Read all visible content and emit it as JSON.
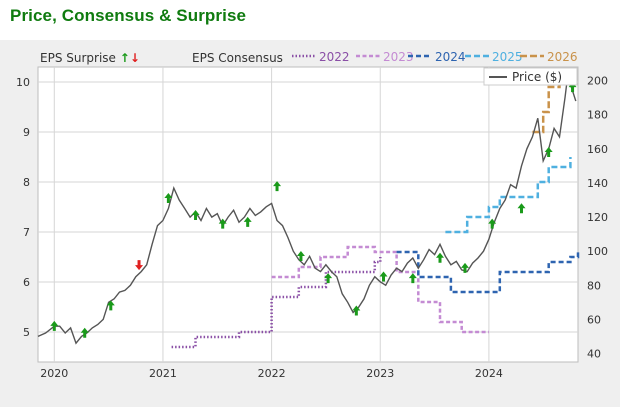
{
  "title": "Price, Consensus & Surprise",
  "legend": {
    "surprise_label": "EPS Surprise",
    "consensus_label": "EPS Consensus",
    "years": [
      {
        "label": "2022",
        "color": "#8a4fa6"
      },
      {
        "label": "2023",
        "color": "#c48bd3"
      },
      {
        "label": "2024",
        "color": "#2e64b0"
      },
      {
        "label": "2025",
        "color": "#4fb0e0"
      },
      {
        "label": "2026",
        "color": "#c9924a"
      }
    ],
    "price_label": "Price ($)"
  },
  "colors": {
    "price": "#555555",
    "beat": "#1a9a1a",
    "miss": "#e02020",
    "panel": "#efefef",
    "grid": "#d6d6d6"
  },
  "chart_data": {
    "type": "line",
    "title": "Price, Consensus & Surprise",
    "x_ticks": [
      "2020",
      "2021",
      "2022",
      "2023",
      "2024"
    ],
    "y_left_ticks": [
      "5",
      "6",
      "7",
      "8",
      "9",
      "10"
    ],
    "y_left_range": [
      4.4,
      10.3
    ],
    "y_right_ticks": [
      "40",
      "60",
      "80",
      "100",
      "120",
      "140",
      "160",
      "180",
      "200"
    ],
    "y_right_range": [
      35,
      208
    ],
    "x_range": [
      2019.85,
      2024.82
    ],
    "price_series": {
      "name": "Price ($)",
      "points": [
        [
          2019.85,
          50
        ],
        [
          2019.92,
          52
        ],
        [
          2020.0,
          56
        ],
        [
          2020.05,
          56
        ],
        [
          2020.1,
          52
        ],
        [
          2020.15,
          55
        ],
        [
          2020.2,
          46
        ],
        [
          2020.25,
          50
        ],
        [
          2020.3,
          52
        ],
        [
          2020.35,
          55
        ],
        [
          2020.4,
          57
        ],
        [
          2020.45,
          60
        ],
        [
          2020.5,
          70
        ],
        [
          2020.55,
          72
        ],
        [
          2020.6,
          76
        ],
        [
          2020.65,
          77
        ],
        [
          2020.7,
          80
        ],
        [
          2020.75,
          85
        ],
        [
          2020.8,
          88
        ],
        [
          2020.85,
          92
        ],
        [
          2020.9,
          104
        ],
        [
          2020.95,
          115
        ],
        [
          2021.0,
          118
        ],
        [
          2021.05,
          125
        ],
        [
          2021.1,
          137
        ],
        [
          2021.15,
          130
        ],
        [
          2021.2,
          125
        ],
        [
          2021.25,
          120
        ],
        [
          2021.3,
          123
        ],
        [
          2021.35,
          118
        ],
        [
          2021.4,
          125
        ],
        [
          2021.45,
          120
        ],
        [
          2021.5,
          122
        ],
        [
          2021.55,
          115
        ],
        [
          2021.6,
          120
        ],
        [
          2021.65,
          124
        ],
        [
          2021.7,
          117
        ],
        [
          2021.75,
          120
        ],
        [
          2021.8,
          125
        ],
        [
          2021.85,
          121
        ],
        [
          2021.9,
          123
        ],
        [
          2021.95,
          126
        ],
        [
          2022.0,
          128
        ],
        [
          2022.05,
          118
        ],
        [
          2022.1,
          115
        ],
        [
          2022.15,
          108
        ],
        [
          2022.2,
          100
        ],
        [
          2022.25,
          95
        ],
        [
          2022.3,
          92
        ],
        [
          2022.35,
          97
        ],
        [
          2022.4,
          90
        ],
        [
          2022.45,
          88
        ],
        [
          2022.5,
          92
        ],
        [
          2022.55,
          88
        ],
        [
          2022.6,
          85
        ],
        [
          2022.65,
          75
        ],
        [
          2022.7,
          70
        ],
        [
          2022.75,
          64
        ],
        [
          2022.8,
          67
        ],
        [
          2022.85,
          72
        ],
        [
          2022.9,
          80
        ],
        [
          2022.95,
          85
        ],
        [
          2023.0,
          82
        ],
        [
          2023.05,
          80
        ],
        [
          2023.1,
          86
        ],
        [
          2023.15,
          90
        ],
        [
          2023.2,
          88
        ],
        [
          2023.25,
          93
        ],
        [
          2023.3,
          96
        ],
        [
          2023.35,
          90
        ],
        [
          2023.4,
          95
        ],
        [
          2023.45,
          101
        ],
        [
          2023.5,
          98
        ],
        [
          2023.55,
          104
        ],
        [
          2023.6,
          97
        ],
        [
          2023.65,
          92
        ],
        [
          2023.7,
          94
        ],
        [
          2023.75,
          89
        ],
        [
          2023.8,
          88
        ],
        [
          2023.85,
          93
        ],
        [
          2023.9,
          96
        ],
        [
          2023.95,
          100
        ],
        [
          2024.0,
          107
        ],
        [
          2024.05,
          117
        ],
        [
          2024.1,
          125
        ],
        [
          2024.15,
          130
        ],
        [
          2024.2,
          139
        ],
        [
          2024.25,
          137
        ],
        [
          2024.3,
          150
        ],
        [
          2024.35,
          160
        ],
        [
          2024.4,
          167
        ],
        [
          2024.45,
          178
        ],
        [
          2024.5,
          153
        ],
        [
          2024.55,
          160
        ],
        [
          2024.6,
          172
        ],
        [
          2024.65,
          167
        ],
        [
          2024.7,
          190
        ],
        [
          2024.72,
          200
        ],
        [
          2024.76,
          196
        ],
        [
          2024.8,
          188
        ]
      ]
    },
    "consensus_series": [
      {
        "name": "2022",
        "points": [
          [
            2021.08,
            4.7
          ],
          [
            2021.3,
            4.9
          ],
          [
            2021.7,
            5.0
          ],
          [
            2021.95,
            5.0
          ],
          [
            2022.0,
            5.7
          ],
          [
            2022.25,
            5.9
          ],
          [
            2022.5,
            6.2
          ],
          [
            2022.75,
            6.2
          ],
          [
            2022.95,
            6.4
          ],
          [
            2023.0,
            6.5
          ]
        ]
      },
      {
        "name": "2023",
        "points": [
          [
            2022.0,
            6.1
          ],
          [
            2022.25,
            6.3
          ],
          [
            2022.45,
            6.5
          ],
          [
            2022.7,
            6.7
          ],
          [
            2022.95,
            6.6
          ],
          [
            2023.15,
            6.2
          ],
          [
            2023.35,
            5.6
          ],
          [
            2023.55,
            5.2
          ],
          [
            2023.75,
            5.0
          ],
          [
            2024.0,
            5.0
          ]
        ]
      },
      {
        "name": "2024",
        "points": [
          [
            2023.15,
            6.6
          ],
          [
            2023.35,
            6.1
          ],
          [
            2023.5,
            6.1
          ],
          [
            2023.65,
            5.8
          ],
          [
            2023.85,
            5.8
          ],
          [
            2024.0,
            5.8
          ],
          [
            2024.1,
            6.2
          ],
          [
            2024.35,
            6.2
          ],
          [
            2024.55,
            6.4
          ],
          [
            2024.75,
            6.5
          ],
          [
            2024.82,
            6.6
          ]
        ]
      },
      {
        "name": "2025",
        "points": [
          [
            2023.6,
            7.0
          ],
          [
            2023.75,
            7.0
          ],
          [
            2023.8,
            7.3
          ],
          [
            2024.0,
            7.5
          ],
          [
            2024.1,
            7.7
          ],
          [
            2024.3,
            7.7
          ],
          [
            2024.45,
            8.0
          ],
          [
            2024.55,
            8.3
          ],
          [
            2024.65,
            8.3
          ],
          [
            2024.75,
            8.5
          ]
        ]
      },
      {
        "name": "2026",
        "points": [
          [
            2024.4,
            9.0
          ],
          [
            2024.5,
            9.4
          ],
          [
            2024.55,
            9.9
          ],
          [
            2024.65,
            10.0
          ],
          [
            2024.75,
            10.0
          ],
          [
            2024.8,
            10.1
          ]
        ]
      }
    ],
    "surprise_markers": [
      {
        "x": 2020.0,
        "y": 55,
        "type": "beat"
      },
      {
        "x": 2020.28,
        "y": 51,
        "type": "beat"
      },
      {
        "x": 2020.52,
        "y": 67,
        "type": "beat"
      },
      {
        "x": 2020.78,
        "y": 93,
        "type": "miss"
      },
      {
        "x": 2021.05,
        "y": 130,
        "type": "beat"
      },
      {
        "x": 2021.3,
        "y": 120,
        "type": "beat"
      },
      {
        "x": 2021.55,
        "y": 115,
        "type": "beat"
      },
      {
        "x": 2021.78,
        "y": 116,
        "type": "beat"
      },
      {
        "x": 2022.05,
        "y": 137,
        "type": "beat"
      },
      {
        "x": 2022.27,
        "y": 96,
        "type": "beat"
      },
      {
        "x": 2022.52,
        "y": 83,
        "type": "beat"
      },
      {
        "x": 2022.78,
        "y": 64,
        "type": "beat"
      },
      {
        "x": 2023.03,
        "y": 84,
        "type": "beat"
      },
      {
        "x": 2023.3,
        "y": 83,
        "type": "beat"
      },
      {
        "x": 2023.55,
        "y": 95,
        "type": "beat"
      },
      {
        "x": 2023.78,
        "y": 89,
        "type": "beat"
      },
      {
        "x": 2024.03,
        "y": 115,
        "type": "beat"
      },
      {
        "x": 2024.3,
        "y": 124,
        "type": "beat"
      },
      {
        "x": 2024.55,
        "y": 157,
        "type": "beat"
      },
      {
        "x": 2024.77,
        "y": 195,
        "type": "beat"
      }
    ]
  }
}
